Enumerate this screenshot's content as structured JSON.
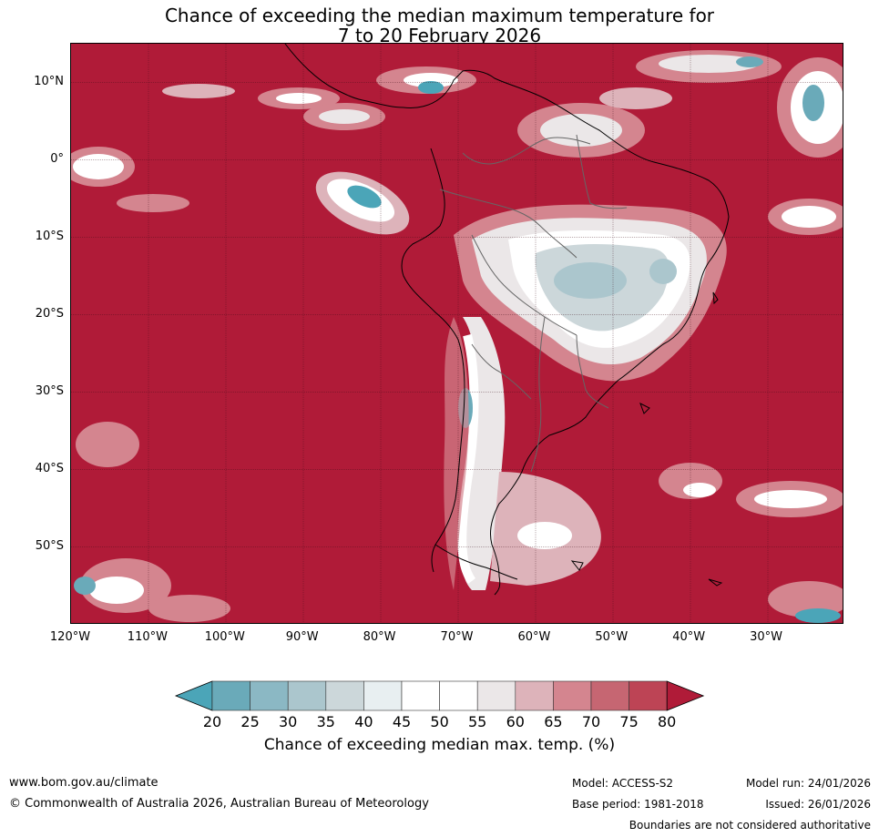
{
  "title_line1": "Chance of exceeding the median maximum temperature for",
  "title_line2": "7 to 20 February 2026",
  "map": {
    "lon_range": [
      -120,
      -20
    ],
    "lat_range": [
      -60,
      15
    ],
    "lat_ticks": [
      "10°N",
      "0°",
      "10°S",
      "20°S",
      "30°S",
      "40°S",
      "50°S"
    ],
    "lon_ticks": [
      "120°W",
      "110°W",
      "100°W",
      "90°W",
      "80°W",
      "70°W",
      "60°W",
      "50°W",
      "40°W",
      "30°W"
    ],
    "background_color": "#b01b38"
  },
  "colorbar": {
    "labels": [
      "20",
      "25",
      "30",
      "35",
      "40",
      "45",
      "50",
      "55",
      "60",
      "65",
      "70",
      "75",
      "80"
    ],
    "colors": [
      "#4ba5b8",
      "#6aaab9",
      "#8bb8c4",
      "#abc6cd",
      "#ccd7da",
      "#e8eff1",
      "#ffffff",
      "#ffffff",
      "#ebe7e8",
      "#ddb3ba",
      "#d4858f",
      "#c66672",
      "#bd4455",
      "#b01b38"
    ],
    "title": "Chance of exceeding median max. temp. (%)"
  },
  "footer": {
    "website": "www.bom.gov.au/climate",
    "copyright": "© Commonwealth of Australia 2026, Australian Bureau of Meteorology",
    "model": "Model: ACCESS-S2",
    "base_period": "Base period: 1981-2018",
    "model_run": "Model run: 24/01/2026",
    "issued": "Issued: 26/01/2026",
    "disclaimer": "Boundaries are not considered authoritative"
  }
}
